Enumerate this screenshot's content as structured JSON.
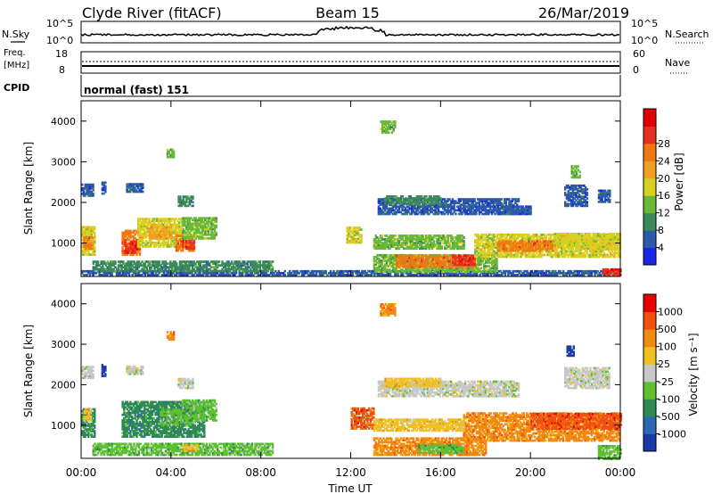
{
  "header": {
    "title_left": "Clyde River (fitACF)",
    "title_center": "Beam 15",
    "title_right": "26/Mar/2019"
  },
  "nsky_panel": {
    "left_label": "N.Sky",
    "left_ticks": [
      "10^5",
      "10^0"
    ],
    "right_ticks": [
      "10^5",
      "10^0"
    ],
    "right_label": "N.Search"
  },
  "freq_panel": {
    "left_label_1": "Freq.",
    "left_label_2": "[MHz]",
    "left_ticks": [
      "18",
      "8"
    ],
    "right_ticks": [
      "60",
      "0"
    ],
    "right_label": "Nave"
  },
  "cpid_panel": {
    "label": "CPID",
    "mode_text": "normal (fast) 151"
  },
  "time_axis": {
    "ticks": [
      "00:00",
      "04:00",
      "08:00",
      "12:00",
      "16:00",
      "20:00",
      "00:00"
    ],
    "label": "Time UT"
  },
  "chart_data": [
    {
      "type": "heatmap",
      "panel": "power",
      "ylabel": "Slant Range [km]",
      "ylim": [
        180,
        4500
      ],
      "y_ticks": [
        "1000",
        "2000",
        "3000",
        "4000"
      ],
      "x_range_hours": [
        0,
        24
      ],
      "colorbar": {
        "label": "Power [dB]",
        "ticks": [
          "4",
          "8",
          "12",
          "16",
          "20",
          "24",
          "28"
        ],
        "colors": [
          "#1a26e6",
          "#2d5aa8",
          "#3a8a5a",
          "#6ab83a",
          "#d8d020",
          "#f0a020",
          "#f07810",
          "#e83020",
          "#e00000"
        ]
      },
      "regions": [
        {
          "t0": 0.0,
          "t1": 0.6,
          "r0": 700,
          "r1": 1400,
          "c": 4
        },
        {
          "t0": 0.1,
          "t1": 0.5,
          "r0": 850,
          "r1": 1150,
          "c": 6
        },
        {
          "t0": 0.0,
          "t1": 0.5,
          "r0": 2150,
          "r1": 2450,
          "c": 1
        },
        {
          "t0": 0.9,
          "t1": 1.1,
          "r0": 2200,
          "r1": 2500,
          "c": 1
        },
        {
          "t0": 1.8,
          "t1": 2.6,
          "r0": 700,
          "r1": 1300,
          "c": 6
        },
        {
          "t0": 1.9,
          "t1": 2.5,
          "r0": 750,
          "r1": 1050,
          "c": 7
        },
        {
          "t0": 2.5,
          "t1": 4.5,
          "r0": 900,
          "r1": 1600,
          "c": 4
        },
        {
          "t0": 3.0,
          "t1": 4.0,
          "r0": 1100,
          "r1": 1400,
          "c": 5
        },
        {
          "t0": 4.2,
          "t1": 5.0,
          "r0": 800,
          "r1": 1200,
          "c": 6
        },
        {
          "t0": 4.5,
          "t1": 5.0,
          "r0": 850,
          "r1": 1050,
          "c": 7
        },
        {
          "t0": 4.5,
          "t1": 6.0,
          "r0": 1100,
          "r1": 1600,
          "c": 3
        },
        {
          "t0": 2.0,
          "t1": 2.7,
          "r0": 2250,
          "r1": 2450,
          "c": 1
        },
        {
          "t0": 4.3,
          "t1": 5.0,
          "r0": 1900,
          "r1": 2150,
          "c": 2
        },
        {
          "t0": 3.8,
          "t1": 4.1,
          "r0": 3100,
          "r1": 3300,
          "c": 3
        },
        {
          "t0": 0.0,
          "t1": 24.0,
          "r0": 200,
          "r1": 300,
          "c": 1
        },
        {
          "t0": 0.5,
          "t1": 8.5,
          "r0": 300,
          "r1": 550,
          "c": 2
        },
        {
          "t0": 13.0,
          "t1": 18.5,
          "r0": 280,
          "r1": 700,
          "c": 3
        },
        {
          "t0": 14.0,
          "t1": 17.5,
          "r0": 400,
          "r1": 700,
          "c": 6
        },
        {
          "t0": 16.5,
          "t1": 17.5,
          "r0": 450,
          "r1": 700,
          "c": 7
        },
        {
          "t0": 17.5,
          "t1": 24.0,
          "r0": 650,
          "r1": 1200,
          "c": 4
        },
        {
          "t0": 18.5,
          "t1": 21.0,
          "r0": 800,
          "r1": 1050,
          "c": 6
        },
        {
          "t0": 21.0,
          "t1": 24.0,
          "r0": 850,
          "r1": 1250,
          "c": 4
        },
        {
          "t0": 13.0,
          "t1": 17.0,
          "r0": 850,
          "r1": 1200,
          "c": 3
        },
        {
          "t0": 11.8,
          "t1": 12.5,
          "r0": 1000,
          "r1": 1400,
          "c": 4
        },
        {
          "t0": 13.2,
          "t1": 19.5,
          "r0": 1700,
          "r1": 2100,
          "c": 1
        },
        {
          "t0": 13.5,
          "t1": 16.0,
          "r0": 1950,
          "r1": 2150,
          "c": 2
        },
        {
          "t0": 18.5,
          "t1": 20.0,
          "r0": 1700,
          "r1": 1900,
          "c": 1
        },
        {
          "t0": 13.3,
          "t1": 14.0,
          "r0": 3700,
          "r1": 4000,
          "c": 3
        },
        {
          "t0": 21.5,
          "t1": 22.5,
          "r0": 1900,
          "r1": 2400,
          "c": 1
        },
        {
          "t0": 21.8,
          "t1": 22.2,
          "r0": 2600,
          "r1": 2900,
          "c": 3
        },
        {
          "t0": 23.0,
          "t1": 23.5,
          "r0": 2000,
          "r1": 2300,
          "c": 1
        },
        {
          "t0": 23.2,
          "t1": 24.0,
          "r0": 200,
          "r1": 350,
          "c": 7
        }
      ]
    },
    {
      "type": "heatmap",
      "panel": "velocity",
      "ylabel": "Slant Range [km]",
      "ylim": [
        180,
        4500
      ],
      "y_ticks": [
        "1000",
        "2000",
        "3000",
        "4000"
      ],
      "x_range_hours": [
        0,
        24
      ],
      "colorbar": {
        "label": "Velocity [m s⁻¹]",
        "ticks": [
          "1000",
          "500",
          "100",
          "25",
          "-25",
          "-100",
          "-500",
          "-1000"
        ],
        "colors": [
          "#1a3aa8",
          "#2a6ab0",
          "#2e8a50",
          "#5cc030",
          "#c8c8c8",
          "#f0c020",
          "#f08a10",
          "#f05010",
          "#e80000"
        ]
      },
      "regions": [
        {
          "t0": 0.0,
          "t1": 0.6,
          "r0": 700,
          "r1": 1400,
          "c": 2
        },
        {
          "t0": 0.1,
          "t1": 0.4,
          "r0": 1100,
          "r1": 1400,
          "c": 5
        },
        {
          "t0": 0.9,
          "t1": 1.1,
          "r0": 2200,
          "r1": 2500,
          "c": 0
        },
        {
          "t0": 0.0,
          "t1": 0.5,
          "r0": 2150,
          "r1": 2450,
          "c": 4
        },
        {
          "t0": 1.8,
          "t1": 5.5,
          "r0": 700,
          "r1": 1600,
          "c": 2
        },
        {
          "t0": 3.5,
          "t1": 5.0,
          "r0": 1000,
          "r1": 1400,
          "c": 3
        },
        {
          "t0": 2.0,
          "t1": 2.7,
          "r0": 2250,
          "r1": 2450,
          "c": 4
        },
        {
          "t0": 4.3,
          "t1": 5.0,
          "r0": 1900,
          "r1": 2150,
          "c": 4
        },
        {
          "t0": 3.8,
          "t1": 4.1,
          "r0": 3100,
          "r1": 3300,
          "c": 6
        },
        {
          "t0": 4.5,
          "t1": 6.0,
          "r0": 1100,
          "r1": 1600,
          "c": 3
        },
        {
          "t0": 0.5,
          "t1": 8.5,
          "r0": 250,
          "r1": 550,
          "c": 3
        },
        {
          "t0": 4.5,
          "t1": 5.2,
          "r0": 350,
          "r1": 500,
          "c": 5
        },
        {
          "t0": 13.0,
          "t1": 18.0,
          "r0": 250,
          "r1": 700,
          "c": 6
        },
        {
          "t0": 15.0,
          "t1": 17.0,
          "r0": 300,
          "r1": 500,
          "c": 3
        },
        {
          "t0": 17.0,
          "t1": 24.0,
          "r0": 600,
          "r1": 1300,
          "c": 6
        },
        {
          "t0": 20.0,
          "t1": 24.0,
          "r0": 900,
          "r1": 1300,
          "c": 7
        },
        {
          "t0": 12.0,
          "t1": 13.0,
          "r0": 900,
          "r1": 1400,
          "c": 7
        },
        {
          "t0": 13.0,
          "t1": 17.0,
          "r0": 850,
          "r1": 1150,
          "c": 5
        },
        {
          "t0": 13.2,
          "t1": 19.5,
          "r0": 1700,
          "r1": 2100,
          "c": 4
        },
        {
          "t0": 13.5,
          "t1": 16.0,
          "r0": 1950,
          "r1": 2150,
          "c": 5
        },
        {
          "t0": 13.3,
          "t1": 14.0,
          "r0": 3700,
          "r1": 4000,
          "c": 6
        },
        {
          "t0": 21.6,
          "t1": 21.9,
          "r0": 2700,
          "r1": 2950,
          "c": 0
        },
        {
          "t0": 21.5,
          "t1": 23.5,
          "r0": 1900,
          "r1": 2400,
          "c": 4
        },
        {
          "t0": 23.0,
          "t1": 24.0,
          "r0": 150,
          "r1": 500,
          "c": 3
        }
      ]
    }
  ]
}
